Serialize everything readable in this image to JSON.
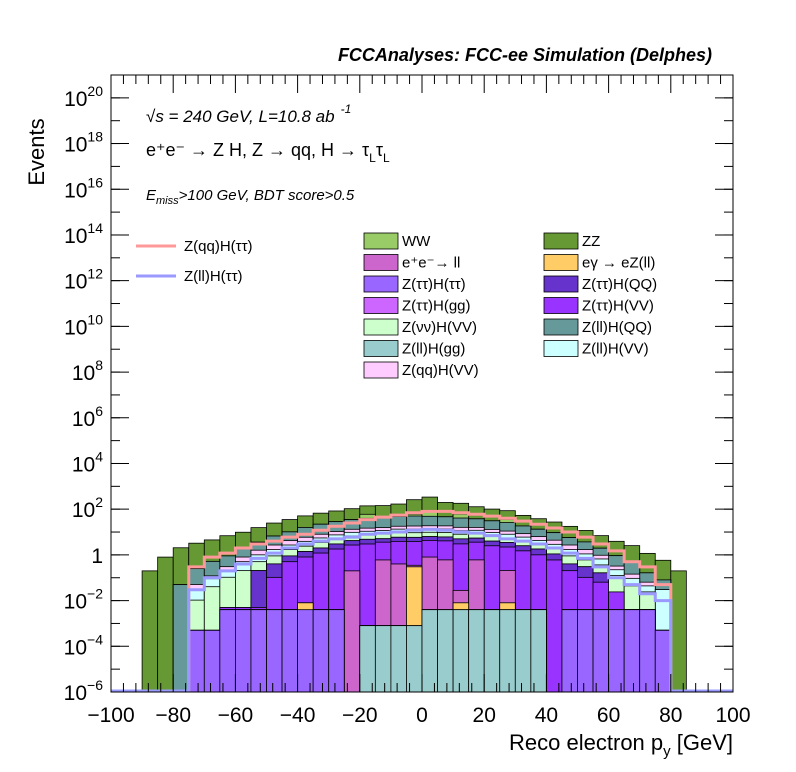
{
  "chart_data": {
    "type": "stacked-histogram",
    "title": "FCCAnalyses: FCC-ee Simulation (Delphes)",
    "xlabel_main": "Reco electron p",
    "xlabel_sub": "y",
    "xlabel_unit": " [GeV]",
    "ylabel": "Events",
    "x_range": [
      -100,
      100
    ],
    "y_range": [
      1e-06,
      1e+21
    ],
    "y_scale": "log",
    "x_ticks": [
      "−100",
      "−80",
      "−60",
      "−40",
      "−20",
      "0",
      "20",
      "40",
      "60",
      "80",
      "100"
    ],
    "x_tick_values": [
      -100,
      -80,
      -60,
      -40,
      -20,
      0,
      20,
      40,
      60,
      80,
      100
    ],
    "y_ticks": [
      {
        "value": 1e-06,
        "base": "10",
        "exp": "−6"
      },
      {
        "value": 0.0001,
        "base": "10",
        "exp": "−4"
      },
      {
        "value": 0.01,
        "base": "10",
        "exp": "−2"
      },
      {
        "value": 1,
        "base": "1",
        "exp": ""
      },
      {
        "value": 100.0,
        "base": "10",
        "exp": "2"
      },
      {
        "value": 10000.0,
        "base": "10",
        "exp": "4"
      },
      {
        "value": 1000000.0,
        "base": "10",
        "exp": "6"
      },
      {
        "value": 100000000.0,
        "base": "10",
        "exp": "8"
      },
      {
        "value": 10000000000.0,
        "base": "10",
        "exp": "10"
      },
      {
        "value": 1000000000000.0,
        "base": "10",
        "exp": "12"
      },
      {
        "value": 100000000000000.0,
        "base": "10",
        "exp": "14"
      },
      {
        "value": 1e+16,
        "base": "10",
        "exp": "16"
      },
      {
        "value": 1e+18,
        "base": "10",
        "exp": "18"
      },
      {
        "value": 1e+20,
        "base": "10",
        "exp": "20"
      }
    ],
    "annotations": {
      "energy": "√s = 240 GeV, L=10.8 ab",
      "energy_exp": "-1",
      "process": "e⁺e⁻ → Z H, Z → qq, H → τ",
      "process_sub1": "L",
      "process_tau": "τ",
      "process_sub2": "L",
      "cut_e": "E",
      "cut_sub": "miss",
      "cut_rest": ">100 GeV, BDT score>0.5"
    },
    "bin_edges": [
      -90,
      -85,
      -80,
      -75,
      -70,
      -65,
      -60,
      -55,
      -50,
      -45,
      -40,
      -35,
      -30,
      -25,
      -20,
      -15,
      -10,
      -5,
      0,
      5,
      10,
      15,
      20,
      25,
      30,
      35,
      40,
      45,
      50,
      55,
      60,
      65,
      70,
      75,
      80,
      85
    ],
    "backgrounds": [
      {
        "name": "Z(ll)H(gg)",
        "color": "#99cccc",
        "values": [
          0,
          0,
          0,
          0,
          0,
          0,
          0,
          0,
          0,
          0,
          0,
          0,
          0,
          0,
          0.0008,
          0.0008,
          0.0008,
          0.0008,
          0.004,
          0.004,
          0.004,
          0.004,
          0.004,
          0.004,
          0.004,
          0.004,
          0,
          0,
          0,
          0,
          0,
          0,
          0,
          0,
          0
        ]
      },
      {
        "name": "Z(ττ)H(ττ)",
        "color": "#9966ff",
        "values": [
          0,
          0,
          0,
          0.0005,
          0.0005,
          0.004,
          0.004,
          0.004,
          0.004,
          0.004,
          0.004,
          0.004,
          0.004,
          0,
          0,
          0,
          0,
          0,
          0,
          0,
          0,
          0,
          0,
          0,
          0,
          0,
          0,
          0.004,
          0.004,
          0.004,
          0.004,
          0.004,
          0.004,
          0.0005,
          0
        ]
      },
      {
        "name": "eγ → eZ(ll)",
        "color": "#ffcc66",
        "values": [
          0,
          0,
          0,
          0,
          0,
          0,
          0,
          0,
          0,
          0,
          0.004,
          0,
          0,
          0,
          0,
          0,
          0,
          0.3,
          0,
          0,
          0.004,
          0,
          0,
          0.004,
          0,
          0,
          0,
          0,
          0,
          0,
          0,
          0,
          0,
          0,
          0
        ]
      },
      {
        "name": "e⁺e⁻→ ll",
        "color": "#cc66cc",
        "values": [
          0,
          0,
          0,
          0,
          0,
          0,
          0,
          0,
          0,
          0,
          0,
          0,
          0,
          0.2,
          0,
          0.6,
          0.4,
          0.05,
          0.8,
          0.6,
          0.02,
          0.6,
          0,
          0.2,
          0,
          0,
          0,
          0,
          0,
          0,
          0,
          0,
          0,
          0,
          0
        ]
      },
      {
        "name": "Z(ττ)H(VV)",
        "color": "#9933ff",
        "values": [
          0,
          0,
          0,
          0,
          0,
          0.001,
          0.001,
          0.001,
          0.1,
          0.5,
          0.8,
          1.2,
          1.8,
          2.5,
          3,
          3,
          3.5,
          3.5,
          3.5,
          3.5,
          3,
          3,
          2.5,
          2,
          1.5,
          1,
          0.6,
          0.2,
          0.1,
          0.06,
          0.02,
          0,
          0,
          0,
          0
        ]
      },
      {
        "name": "Z(ττ)H(QQ)",
        "color": "#6633cc",
        "values": [
          0,
          0,
          0,
          0,
          0,
          0,
          0,
          0.2,
          0.3,
          0.4,
          0.6,
          0.8,
          1.2,
          1.5,
          1.8,
          1.5,
          2,
          2,
          2,
          2,
          2,
          1.8,
          1.5,
          1.3,
          1,
          0.8,
          0.5,
          0.2,
          0.2,
          0.1,
          0,
          0,
          0,
          0,
          0
        ]
      },
      {
        "name": "Z(ττ)H(gg)",
        "color": "#cc66ff",
        "values": [
          0,
          0,
          0,
          0,
          0,
          0,
          0,
          0,
          0,
          0,
          0,
          0,
          0,
          0,
          0,
          0,
          0,
          0,
          0,
          0,
          0,
          0,
          0,
          0,
          0,
          0,
          0,
          0,
          0,
          0,
          0,
          0,
          0,
          0,
          0
        ]
      },
      {
        "name": "Z(νν)H(VV)",
        "color": "#ccffcc",
        "values": [
          0,
          0,
          0,
          0.01,
          0.04,
          0.1,
          0.2,
          0.3,
          0.5,
          0.8,
          1,
          1.5,
          2,
          2.5,
          3,
          3,
          3.5,
          3.5,
          3.5,
          3.5,
          3,
          3,
          2.5,
          2,
          1.5,
          1,
          0.8,
          0.5,
          0.3,
          0.2,
          0.1,
          0.04,
          0.02,
          0,
          0
        ]
      },
      {
        "name": "Z(ll)H(VV)",
        "color": "#ccffff",
        "values": [
          0,
          0,
          0,
          0.02,
          0.05,
          0.1,
          0.3,
          0.5,
          0.8,
          1,
          1.5,
          2,
          2.5,
          3,
          3,
          3.5,
          4,
          4,
          4,
          4,
          3.5,
          3.5,
          3,
          2.5,
          2,
          1.5,
          1,
          0.8,
          0.5,
          0.3,
          0.1,
          0.05,
          0.02,
          0.03,
          0
        ]
      },
      {
        "name": "Z(qq)H(VV)",
        "color": "#ffccff",
        "values": [
          0,
          0,
          0,
          0.02,
          0.03,
          0.1,
          0.3,
          0.6,
          1,
          1.5,
          2,
          2.5,
          3,
          3.5,
          4,
          4,
          4.5,
          5,
          5,
          5,
          4.5,
          4,
          3.5,
          3,
          2.5,
          2,
          1.5,
          1,
          0.6,
          0.3,
          0.1,
          0.05,
          0.02,
          0,
          0
        ]
      },
      {
        "name": "Z(ll)H(QQ)",
        "color": "#669999",
        "values": [
          0,
          0,
          0.05,
          0.2,
          0.4,
          0.6,
          1,
          2,
          4,
          6,
          10,
          14,
          18,
          22,
          25,
          28,
          30,
          32,
          30,
          28,
          25,
          22,
          18,
          15,
          10,
          7,
          5,
          3,
          2,
          1,
          0.6,
          0.4,
          0.1,
          0.05,
          0
        ]
      },
      {
        "name": "WW",
        "color": "#99cc66",
        "values": [
          0,
          0,
          0,
          0,
          0,
          0,
          0,
          0,
          0,
          0,
          0,
          0,
          0,
          0,
          20,
          0,
          0,
          10,
          40,
          0,
          20,
          0,
          0,
          10,
          0,
          0,
          0,
          0,
          0,
          0,
          0,
          0,
          0,
          0,
          0
        ]
      },
      {
        "name": "ZZ",
        "color": "#669933",
        "values": [
          0.2,
          0.8,
          2,
          3,
          4,
          6,
          8,
          12,
          18,
          25,
          35,
          45,
          55,
          70,
          80,
          100,
          120,
          200,
          250,
          150,
          120,
          90,
          70,
          50,
          35,
          25,
          18,
          12,
          8,
          5,
          3,
          2,
          1,
          0.5,
          0.2
        ]
      }
    ],
    "signals": [
      {
        "name": "Z(qq)H(ττ)",
        "color": "#ff9999",
        "values": [
          0,
          0,
          0,
          0.3,
          0.8,
          1.2,
          2,
          3,
          4,
          6,
          8,
          12,
          18,
          25,
          35,
          45,
          55,
          70,
          80,
          80,
          70,
          60,
          50,
          40,
          30,
          22,
          15,
          10,
          6,
          3,
          1.5,
          0.5,
          0.3,
          0.05,
          0
        ]
      },
      {
        "name": "Z(ll)H(ττ)",
        "color": "#9999ff",
        "values": [
          0,
          0,
          0,
          0.03,
          0.1,
          0.2,
          0.4,
          0.7,
          1.2,
          2,
          3,
          4,
          5,
          6,
          8,
          9,
          10,
          12,
          13,
          12,
          10,
          9,
          7,
          5,
          4,
          3,
          2,
          1.2,
          0.7,
          0.3,
          0.1,
          0.05,
          0.02,
          0.01,
          0
        ]
      }
    ],
    "legend_left": [
      {
        "name": "Z(qq)H(ττ)",
        "color": "#ff9999"
      },
      {
        "name": "Z(ll)H(ττ)",
        "color": "#9999ff"
      }
    ],
    "legend_right": [
      {
        "name": "WW",
        "color": "#99cc66"
      },
      {
        "name": "ZZ",
        "color": "#669933"
      },
      {
        "name": "e⁺e⁻→ ll",
        "color": "#cc66cc"
      },
      {
        "name": "eγ → eZ(ll)",
        "color": "#ffcc66"
      },
      {
        "name": "Z(ττ)H(ττ)",
        "color": "#9966ff"
      },
      {
        "name": "Z(ττ)H(QQ)",
        "color": "#6633cc"
      },
      {
        "name": "Z(ττ)H(gg)",
        "color": "#cc66ff"
      },
      {
        "name": "Z(ττ)H(VV)",
        "color": "#9933ff"
      },
      {
        "name": "Z(νν)H(VV)",
        "color": "#ccffcc"
      },
      {
        "name": "Z(ll)H(QQ)",
        "color": "#669999"
      },
      {
        "name": "Z(ll)H(gg)",
        "color": "#99cccc"
      },
      {
        "name": "Z(ll)H(VV)",
        "color": "#ccffff"
      },
      {
        "name": "Z(qq)H(VV)",
        "color": "#ffccff"
      }
    ]
  }
}
